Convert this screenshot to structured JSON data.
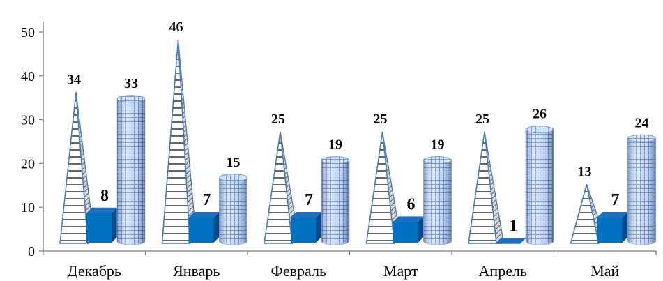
{
  "chart_data": {
    "type": "bar",
    "title": "",
    "xlabel": "",
    "ylabel": "",
    "ylim": [
      0,
      50
    ],
    "yticks": [
      0,
      10,
      20,
      30,
      40,
      50
    ],
    "grid": false,
    "legend": "none",
    "categories": [
      "Декабрь",
      "Январь",
      "Февраль",
      "Март",
      "Апрель",
      "Май"
    ],
    "series": [
      {
        "shape": "pyramid",
        "pattern": "horizontal-lines",
        "color": "#4A7EBB",
        "values": [
          34,
          46,
          25,
          25,
          25,
          13
        ]
      },
      {
        "shape": "box",
        "pattern": "solid",
        "color": "#0070C0",
        "values": [
          8,
          7,
          7,
          6,
          1,
          7
        ]
      },
      {
        "shape": "cylinder",
        "pattern": "grid",
        "color": "#95B3D7",
        "values": [
          33,
          15,
          19,
          19,
          26,
          24
        ]
      }
    ]
  }
}
